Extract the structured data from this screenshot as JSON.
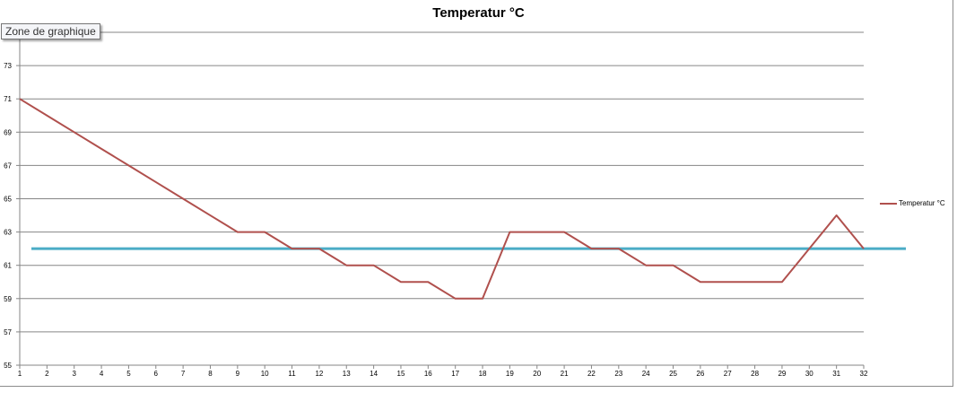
{
  "chart_data": {
    "type": "line",
    "title": "Temperatur °C",
    "xlabel": "",
    "ylabel": "",
    "x": [
      1,
      2,
      3,
      4,
      5,
      6,
      7,
      8,
      9,
      10,
      11,
      12,
      13,
      14,
      15,
      16,
      17,
      18,
      19,
      20,
      21,
      22,
      23,
      24,
      25,
      26,
      27,
      28,
      29,
      30,
      31,
      32
    ],
    "series": [
      {
        "name": "Temperatur °C",
        "color": "#b0504d",
        "values": [
          71,
          70,
          69,
          68,
          67,
          66,
          65,
          64,
          63,
          63,
          62,
          62,
          61,
          61,
          60,
          60,
          59,
          59,
          63,
          63,
          63,
          62,
          62,
          61,
          61,
          60,
          60,
          60,
          60,
          62,
          64,
          62
        ]
      }
    ],
    "reference_line": {
      "value": 62,
      "color": "#4bacc6"
    },
    "ylim": [
      55,
      75
    ],
    "yticks": [
      55,
      57,
      59,
      61,
      63,
      65,
      67,
      69,
      71,
      73
    ],
    "gridlines_every": 2,
    "grid": true,
    "legend_position": "right"
  },
  "tooltip": "Zone de graphique"
}
